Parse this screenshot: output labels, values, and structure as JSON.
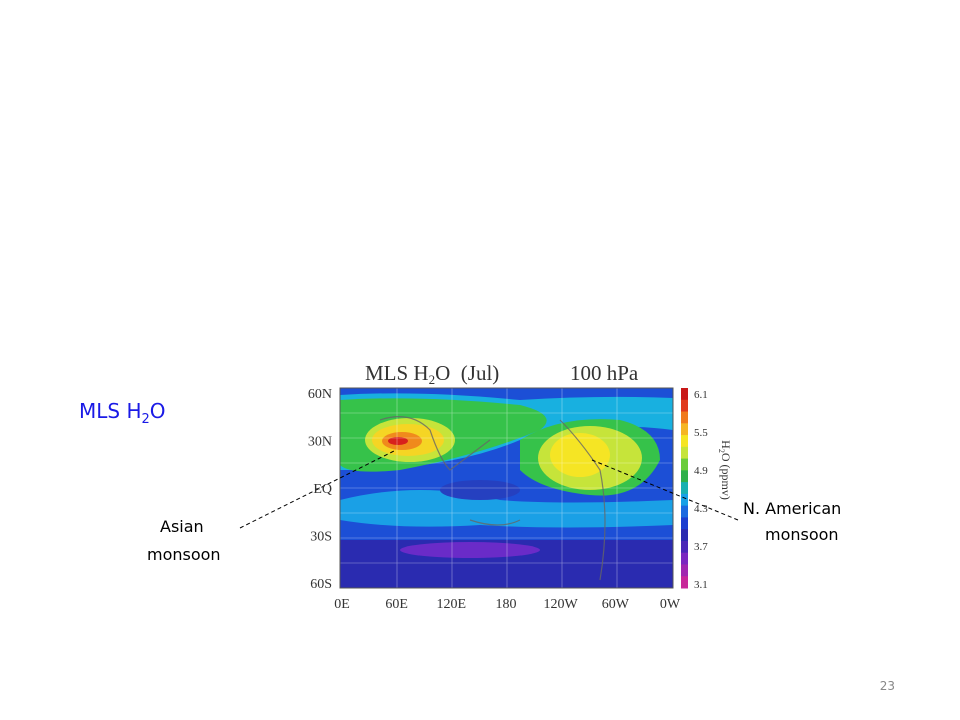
{
  "slide": {
    "label": {
      "text": "MLS H",
      "sub": "2",
      "tail": "O"
    },
    "page_number": "23"
  },
  "figure": {
    "title": {
      "text": "MLS H",
      "sub": "2",
      "tail": "O  (Jul)"
    },
    "level": "100 hPa",
    "lat_labels": [
      "60N",
      "30N",
      "EQ",
      "30S",
      "60S"
    ],
    "lon_labels": [
      "0E",
      "60E",
      "120E",
      "180",
      "120W",
      "60W",
      "0W"
    ],
    "colorbar": {
      "labels": [
        "6.1",
        "5.5",
        "4.9",
        "4.3",
        "3.7",
        "3.1"
      ],
      "title": {
        "text": "H",
        "sub": "2",
        "tail": "O (ppmv)"
      }
    }
  },
  "annotations": {
    "asian": [
      "Asian",
      "monsoon"
    ],
    "north_american": [
      "N. American",
      "monsoon"
    ]
  }
}
